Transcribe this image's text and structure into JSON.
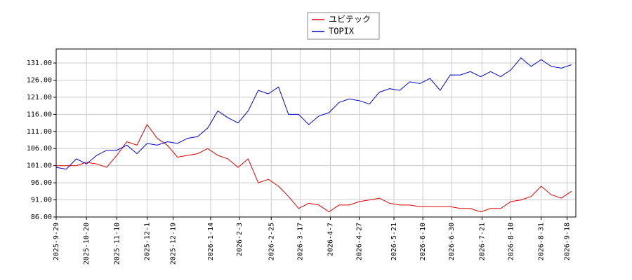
{
  "chart_data": {
    "type": "line",
    "x": [
      "2025-9-29",
      "2025-10-6",
      "2025-10-13",
      "2025-10-20",
      "2025-10-27",
      "2025-11-3",
      "2025-11-10",
      "2025-11-17",
      "2025-11-24",
      "2025-12-1",
      "2025-12-8",
      "2025-12-15",
      "2025-12-22",
      "2025-12-29",
      "2026-1-5",
      "2026-1-12",
      "2026-1-19",
      "2026-1-26",
      "2026-2-2",
      "2026-2-9",
      "2026-2-16",
      "2026-2-23",
      "2026-3-2",
      "2026-3-9",
      "2026-3-16",
      "2026-3-23",
      "2026-3-30",
      "2026-4-6",
      "2026-4-13",
      "2026-4-20",
      "2026-4-27",
      "2026-5-4",
      "2026-5-11",
      "2026-5-18",
      "2026-5-25",
      "2026-6-1",
      "2026-6-8",
      "2026-6-15",
      "2026-6-22",
      "2026-6-29",
      "2026-7-6",
      "2026-7-13",
      "2026-7-20",
      "2026-7-27",
      "2026-8-3",
      "2026-8-10",
      "2026-8-17",
      "2026-8-24",
      "2026-8-31",
      "2026-9-7",
      "2026-9-14",
      "2026-9-21"
    ],
    "series": [
      {
        "name": "ユビテック",
        "color": "#dd0000",
        "values": [
          101,
          101,
          101,
          102,
          101.5,
          100.5,
          104,
          108,
          107,
          113,
          109,
          107,
          103.5,
          104,
          104.5,
          106,
          104,
          103,
          100.5,
          103,
          96,
          97,
          95,
          92,
          88.5,
          90,
          89.5,
          87.5,
          89.5,
          89.5,
          90.5,
          91,
          91.5,
          90,
          89.5,
          89.5,
          89,
          89,
          89,
          89,
          88.5,
          88.5,
          87.5,
          88.5,
          88.5,
          90.5,
          91,
          92,
          95,
          92.5,
          91.5,
          93.5
        ]
      },
      {
        "name": "TOPIX",
        "color": "#0000cc",
        "values": [
          100.5,
          100,
          103,
          101.5,
          104,
          105.5,
          105.5,
          107,
          104.5,
          107.5,
          107,
          108,
          107.5,
          109,
          109.5,
          112,
          117,
          115,
          113.5,
          117,
          123,
          122,
          124,
          116,
          116,
          113,
          115.5,
          116.5,
          119.5,
          120.5,
          120,
          119,
          122.5,
          123.5,
          123,
          125.5,
          125,
          126.5,
          123,
          127.5,
          127.5,
          128.5,
          127,
          128.5,
          127,
          129,
          132.5,
          130,
          132,
          130,
          129.5,
          130.5
        ]
      }
    ],
    "xlim": [
      "2025-9-29",
      "2026-9-24"
    ],
    "xticks": [
      "2025-9-29",
      "2025-10-20",
      "2025-11-10",
      "2025-12-1",
      "2025-12-19",
      "2026-1-14",
      "2026-2-3",
      "2026-2-25",
      "2026-3-17",
      "2026-4-7",
      "2026-4-27",
      "2026-5-21",
      "2026-6-10",
      "2026-6-30",
      "2026-7-21",
      "2026-8-10",
      "2026-8-31",
      "2026-9-18"
    ],
    "ylim": [
      86,
      135.1
    ],
    "yticks": [
      {
        "value": 86,
        "label": "86.00"
      },
      {
        "value": 91,
        "label": "91.00"
      },
      {
        "value": 96,
        "label": "96.00"
      },
      {
        "value": 101,
        "label": "101.00"
      },
      {
        "value": 106,
        "label": "106.00"
      },
      {
        "value": 111,
        "label": "111.00"
      },
      {
        "value": 116,
        "label": "116.00"
      },
      {
        "value": 121,
        "label": "121.00"
      },
      {
        "value": 126,
        "label": "126.00"
      },
      {
        "value": 131,
        "label": "131.00"
      }
    ],
    "grid": true,
    "legend": "top"
  }
}
